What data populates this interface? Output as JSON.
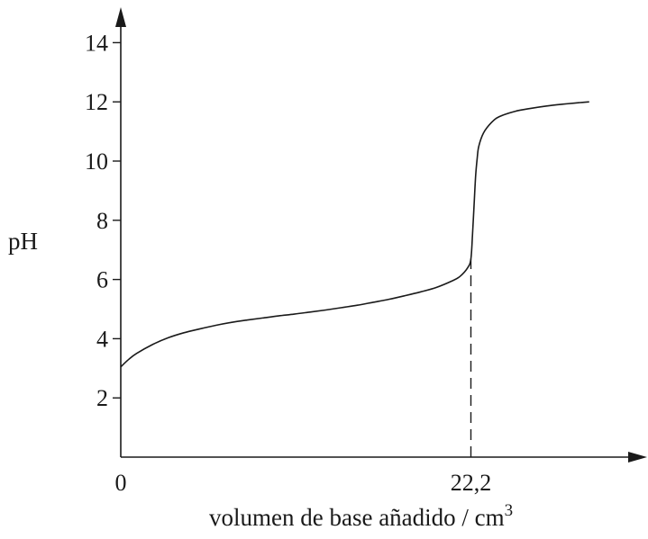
{
  "chart_data": {
    "type": "line",
    "title": "",
    "ylabel": "pH",
    "xlabel": "volumen de base añadido / cm",
    "xlabel_superscript": "3",
    "ylim": [
      0,
      14
    ],
    "y_ticks": [
      2,
      4,
      6,
      8,
      10,
      12,
      14
    ],
    "xlim": [
      0,
      30.3
    ],
    "x_tick_labels": [
      {
        "value": 0,
        "label": "0"
      },
      {
        "value": 22.2,
        "label": "22,2"
      }
    ],
    "equivalence_volume": 22.2,
    "grid": false,
    "legend": "none",
    "series": [
      {
        "x": [
          0,
          0.5,
          1,
          2,
          3,
          4,
          5,
          6,
          7,
          8,
          9,
          10,
          11,
          12,
          13,
          14,
          15,
          16,
          17,
          18,
          19,
          20,
          21,
          21.5,
          22,
          22.2,
          22.3,
          22.4,
          22.5,
          22.6,
          22.7,
          23,
          23.5,
          24,
          25,
          26,
          27,
          28,
          29,
          29.7
        ],
        "y": [
          3.05,
          3.3,
          3.5,
          3.8,
          4.03,
          4.2,
          4.33,
          4.45,
          4.55,
          4.63,
          4.7,
          4.77,
          4.83,
          4.9,
          4.97,
          5.05,
          5.13,
          5.23,
          5.33,
          5.45,
          5.58,
          5.73,
          5.95,
          6.1,
          6.4,
          6.7,
          7.5,
          8.5,
          9.5,
          10.1,
          10.5,
          10.95,
          11.3,
          11.5,
          11.68,
          11.78,
          11.86,
          11.92,
          11.97,
          12.0
        ]
      }
    ]
  }
}
